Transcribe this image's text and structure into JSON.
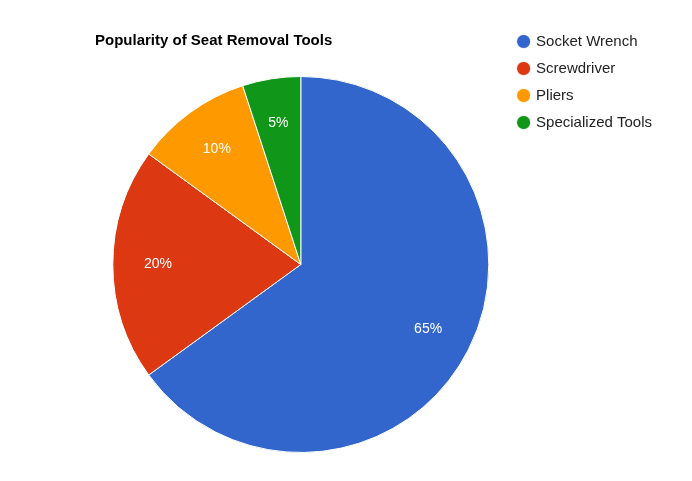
{
  "chart_data": {
    "type": "pie",
    "title": "Popularity of Seat Removal Tools",
    "categories": [
      "Socket Wrench",
      "Screwdriver",
      "Pliers",
      "Specialized Tools"
    ],
    "values": [
      65,
      20,
      10,
      5
    ],
    "value_labels": [
      "65%",
      "20%",
      "10%",
      "5%"
    ],
    "colors": [
      "#3366cc",
      "#dc3912",
      "#ff9900",
      "#109618"
    ],
    "legend": "right",
    "data_labels": true
  }
}
